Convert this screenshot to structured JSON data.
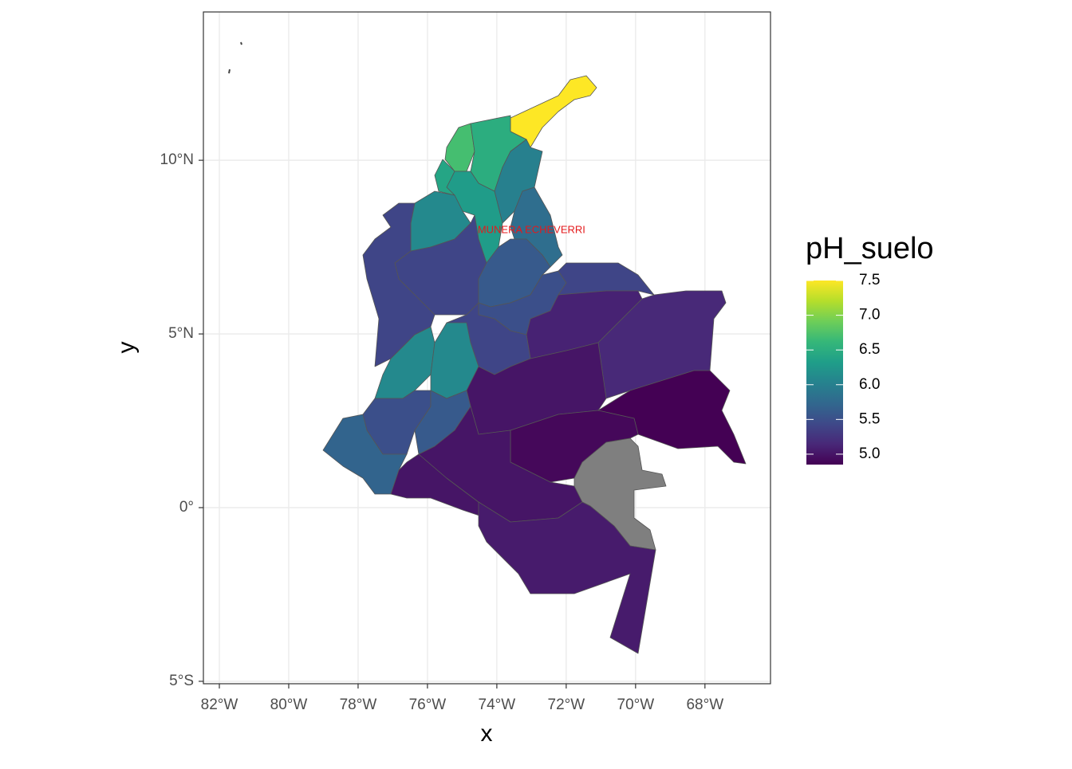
{
  "chart_data": {
    "type": "choropleth",
    "x_label": "x",
    "y_label": "y",
    "legend_title": "pH_suelo",
    "xlim": [
      -82.46,
      -66.11
    ],
    "ylim": [
      -5.07,
      14.27
    ],
    "xticks": [
      {
        "value": -82,
        "label": "82°W"
      },
      {
        "value": -80,
        "label": "80°W"
      },
      {
        "value": -78,
        "label": "78°W"
      },
      {
        "value": -76,
        "label": "76°W"
      },
      {
        "value": -74,
        "label": "74°W"
      },
      {
        "value": -72,
        "label": "72°W"
      },
      {
        "value": -70,
        "label": "70°W"
      },
      {
        "value": -68,
        "label": "68°W"
      }
    ],
    "yticks": [
      {
        "value": -5,
        "label": "5°S"
      },
      {
        "value": 0,
        "label": "0°"
      },
      {
        "value": 5,
        "label": "5°N"
      },
      {
        "value": 10,
        "label": "10°N"
      }
    ],
    "grid": true,
    "values": [
      7.5,
      6.7,
      6.5,
      6.0,
      6.3,
      6.4,
      6.1,
      5.8,
      5.4,
      5.4,
      5.6,
      5.5,
      5.4,
      5.1,
      5.15,
      5.4,
      6.1,
      6.1,
      5.0,
      4.85,
      4.9,
      5.5,
      5.6,
      5.7,
      5.0,
      5.0,
      null,
      5.05
    ],
    "fill_range": [
      4.85,
      7.5
    ],
    "colorscale": [
      "#440154",
      "#482878",
      "#3e4989",
      "#31688e",
      "#26828e",
      "#1f9e89",
      "#35b779",
      "#6ece58",
      "#b5de2b",
      "#fde725"
    ],
    "na_color": "#7f7f7f",
    "legend_ticks": [
      {
        "value": 5,
        "label": "5.0"
      },
      5.5,
      {
        "value": 6,
        "label": "6.0"
      },
      6.5,
      {
        "value": 7,
        "label": "7.0"
      },
      7.5
    ],
    "annotation": {
      "text": "MUNERA ECHEVERRI",
      "x": -73,
      "y": 7.98,
      "color": "#e41a1c"
    }
  }
}
